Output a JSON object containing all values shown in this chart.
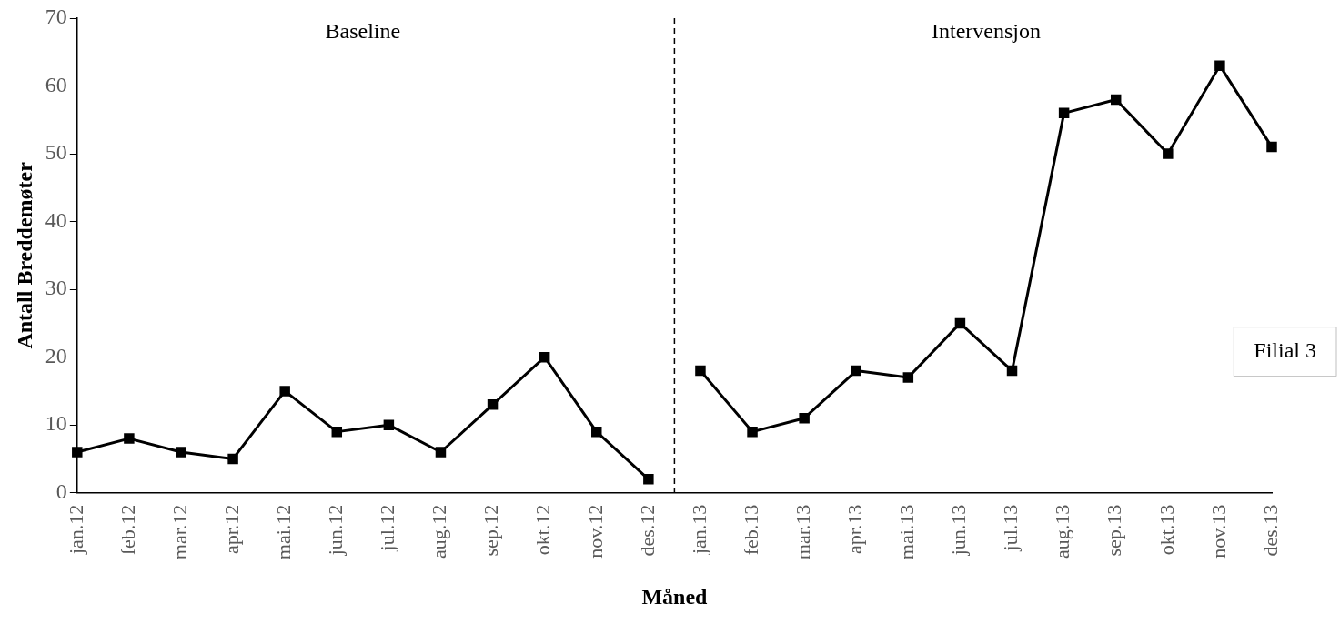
{
  "chart_data": {
    "type": "line",
    "xlabel": "Måned",
    "ylabel": "Antall Breddemøter",
    "categories": [
      "jan.12",
      "feb.12",
      "mar.12",
      "apr.12",
      "mai.12",
      "jun.12",
      "jul.12",
      "aug.12",
      "sep.12",
      "okt.12",
      "nov.12",
      "des.12",
      "jan.13",
      "feb.13",
      "mar.13",
      "apr.13",
      "mai.13",
      "jun.13",
      "jul.13",
      "aug.13",
      "sep.13",
      "okt.13",
      "nov.13",
      "des.13"
    ],
    "series": [
      {
        "color": "#000000",
        "values": [
          6,
          8,
          6,
          5,
          15,
          9,
          10,
          6,
          13,
          20,
          9,
          2,
          null,
          null,
          null,
          null,
          null,
          null,
          null,
          null,
          null,
          null,
          null,
          null
        ]
      },
      {
        "color": "#000000",
        "values": [
          null,
          null,
          null,
          null,
          null,
          null,
          null,
          null,
          null,
          null,
          null,
          null,
          18,
          9,
          11,
          18,
          17,
          25,
          18,
          56,
          58,
          50,
          63,
          51
        ]
      }
    ],
    "ylim": [
      0,
      70
    ],
    "yticks": [
      0,
      10,
      20,
      30,
      40,
      50,
      60,
      70
    ],
    "grid": false,
    "legend": false,
    "marker": "square",
    "line_style": "solid",
    "annotations": [
      "Baseline",
      "Intervensjon",
      "Filial 3"
    ]
  }
}
